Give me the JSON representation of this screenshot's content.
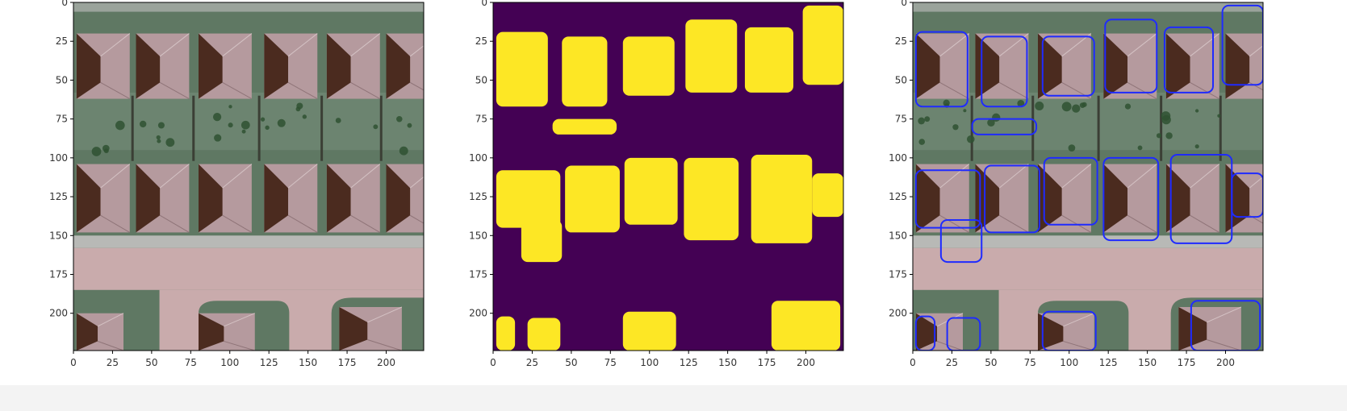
{
  "figure": {
    "panel_count": 3,
    "colors": {
      "mask_background": "#440154",
      "mask_foreground": "#fde725",
      "contour": "#1f2bff",
      "road": "#c9abac",
      "grass": "#5f7863",
      "roof_light": "#b59a9e",
      "roof_shadow": "#4b2b1f"
    }
  },
  "chart_data": [
    {
      "type": "heatmap",
      "content": "aerial-photo",
      "title": "",
      "xlabel": "",
      "ylabel": "",
      "xlim": [
        0,
        224
      ],
      "ylim": [
        224,
        0
      ],
      "x_ticks": [
        0,
        25,
        50,
        75,
        100,
        125,
        150,
        175,
        200
      ],
      "y_ticks": [
        0,
        25,
        50,
        75,
        100,
        125,
        150,
        175,
        200
      ],
      "x_tick_labels": [
        "0",
        "25",
        "50",
        "75",
        "100",
        "125",
        "150",
        "175",
        "200"
      ],
      "y_tick_labels": [
        "0",
        "25",
        "50",
        "75",
        "100",
        "125",
        "150",
        "175",
        "200"
      ],
      "grid": false
    },
    {
      "type": "heatmap",
      "content": "binary-mask",
      "title": "",
      "xlabel": "",
      "ylabel": "",
      "xlim": [
        0,
        224
      ],
      "ylim": [
        224,
        0
      ],
      "x_ticks": [
        0,
        25,
        50,
        75,
        100,
        125,
        150,
        175,
        200
      ],
      "y_ticks": [
        0,
        25,
        50,
        75,
        100,
        125,
        150,
        175,
        200
      ],
      "x_tick_labels": [
        "0",
        "25",
        "50",
        "75",
        "100",
        "125",
        "150",
        "175",
        "200"
      ],
      "y_tick_labels": [
        "0",
        "25",
        "50",
        "75",
        "100",
        "125",
        "150",
        "175",
        "200"
      ],
      "grid": false,
      "foreground_regions": [
        {
          "x0": 2,
          "x1": 35,
          "y0": 19,
          "y1": 67
        },
        {
          "x0": 44,
          "x1": 73,
          "y0": 22,
          "y1": 67
        },
        {
          "x0": 83,
          "x1": 116,
          "y0": 22,
          "y1": 60
        },
        {
          "x0": 123,
          "x1": 156,
          "y0": 11,
          "y1": 58
        },
        {
          "x0": 161,
          "x1": 192,
          "y0": 16,
          "y1": 58
        },
        {
          "x0": 198,
          "x1": 224,
          "y0": 2,
          "y1": 53
        },
        {
          "x0": 38,
          "x1": 79,
          "y0": 75,
          "y1": 85
        },
        {
          "x0": 2,
          "x1": 43,
          "y0": 108,
          "y1": 145
        },
        {
          "x0": 18,
          "x1": 44,
          "y0": 140,
          "y1": 167
        },
        {
          "x0": 46,
          "x1": 81,
          "y0": 105,
          "y1": 148
        },
        {
          "x0": 84,
          "x1": 118,
          "y0": 100,
          "y1": 143
        },
        {
          "x0": 122,
          "x1": 157,
          "y0": 100,
          "y1": 153
        },
        {
          "x0": 165,
          "x1": 204,
          "y0": 98,
          "y1": 155
        },
        {
          "x0": 204,
          "x1": 224,
          "y0": 110,
          "y1": 138
        },
        {
          "x0": 2,
          "x1": 14,
          "y0": 202,
          "y1": 224
        },
        {
          "x0": 22,
          "x1": 43,
          "y0": 203,
          "y1": 224
        },
        {
          "x0": 83,
          "x1": 117,
          "y0": 199,
          "y1": 224
        },
        {
          "x0": 178,
          "x1": 222,
          "y0": 192,
          "y1": 224
        }
      ]
    },
    {
      "type": "heatmap",
      "content": "photo-with-mask-contours",
      "title": "",
      "xlabel": "",
      "ylabel": "",
      "xlim": [
        0,
        224
      ],
      "ylim": [
        224,
        0
      ],
      "x_ticks": [
        0,
        25,
        50,
        75,
        100,
        125,
        150,
        175,
        200
      ],
      "y_ticks": [
        0,
        25,
        50,
        75,
        100,
        125,
        150,
        175,
        200
      ],
      "x_tick_labels": [
        "0",
        "25",
        "50",
        "75",
        "100",
        "125",
        "150",
        "175",
        "200"
      ],
      "y_tick_labels": [
        "0",
        "25",
        "50",
        "75",
        "100",
        "125",
        "150",
        "175",
        "200"
      ],
      "grid": false
    }
  ]
}
